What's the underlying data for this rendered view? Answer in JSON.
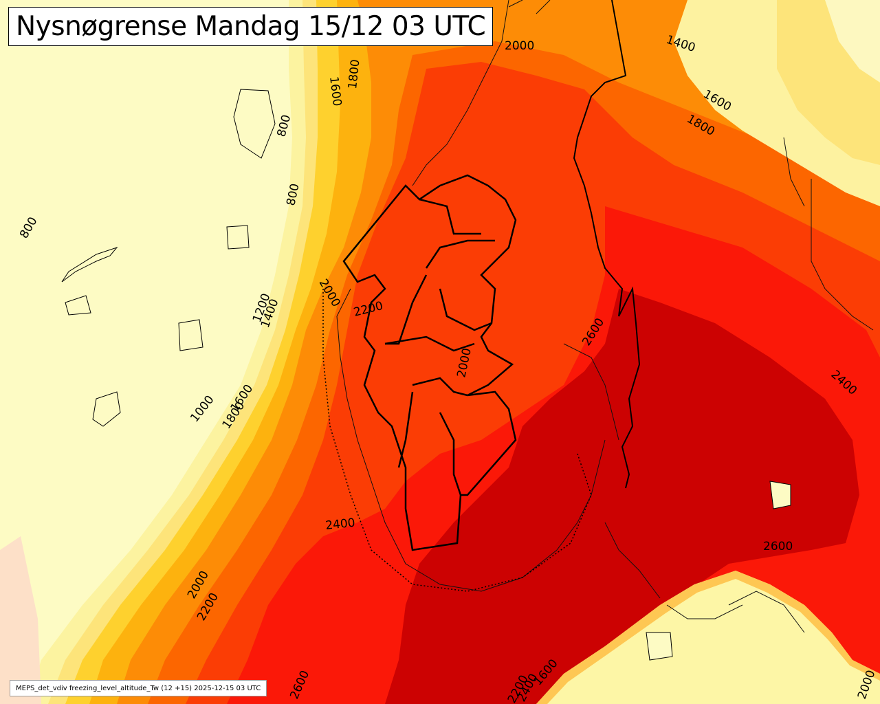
{
  "title": "Nysnøgrense Mandag 15/12 03 UTC",
  "footer": "MEPS_det_vdiv freezing_level_altitude_Tw (12 +15) 2025-12-15 03 UTC",
  "colors": {
    "c600_1000": "#fdfbc4",
    "c1000_1200": "#fcf3a0",
    "c1200_1400": "#fde47a",
    "c1400_1600": "#fed12e",
    "c1600_1800": "#fdb20e",
    "c1800_2000": "#fd8c06",
    "c2000_2200": "#fc6600",
    "c2200_2400": "#fb3d05",
    "c2400_2600": "#fb1808",
    "c2600_plus": "#cc0202"
  },
  "contour_labels": [
    "800",
    "800",
    "800",
    "1000",
    "1200",
    "1400",
    "1400",
    "1600",
    "1600",
    "1800",
    "1800",
    "1800",
    "1600",
    "2000",
    "2000",
    "2000",
    "2200",
    "2200",
    "2000",
    "2400",
    "2400",
    "2600",
    "2600",
    "2600",
    "2200",
    "1600",
    "2400",
    "2000"
  ]
}
